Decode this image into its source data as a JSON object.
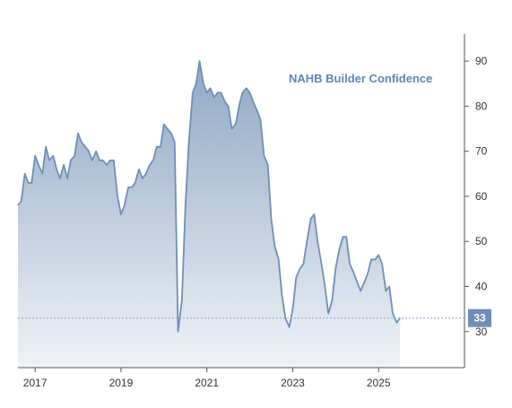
{
  "chart_data": {
    "type": "area",
    "title": "NAHB Builder Confidence",
    "xlabel": "",
    "ylabel": "",
    "x_range": [
      2016.6,
      2027.0
    ],
    "ylim": [
      22,
      96
    ],
    "y_ticks": [
      30,
      40,
      50,
      60,
      70,
      80,
      90
    ],
    "x_ticks": [
      {
        "value": 2017,
        "label": "2017"
      },
      {
        "value": 2019,
        "label": "2019"
      },
      {
        "value": 2021,
        "label": "2021"
      },
      {
        "value": 2023,
        "label": "2023"
      },
      {
        "value": 2025,
        "label": "2025"
      }
    ],
    "grid": false,
    "y_axis_side": "right",
    "last_value": 33,
    "last_value_label": "33",
    "series": [
      {
        "x": [
          2016.6,
          2016.68,
          2016.76,
          2016.84,
          2016.92,
          2017.0,
          2017.08,
          2017.17,
          2017.25,
          2017.33,
          2017.42,
          2017.5,
          2017.58,
          2017.67,
          2017.75,
          2017.83,
          2017.92,
          2018.0,
          2018.08,
          2018.17,
          2018.25,
          2018.33,
          2018.42,
          2018.5,
          2018.58,
          2018.67,
          2018.75,
          2018.83,
          2018.92,
          2019.0,
          2019.08,
          2019.17,
          2019.25,
          2019.33,
          2019.42,
          2019.5,
          2019.58,
          2019.67,
          2019.75,
          2019.83,
          2019.92,
          2020.0,
          2020.08,
          2020.17,
          2020.25,
          2020.33,
          2020.42,
          2020.5,
          2020.58,
          2020.67,
          2020.75,
          2020.83,
          2020.92,
          2021.0,
          2021.08,
          2021.17,
          2021.25,
          2021.33,
          2021.42,
          2021.5,
          2021.58,
          2021.67,
          2021.75,
          2021.83,
          2021.92,
          2022.0,
          2022.08,
          2022.17,
          2022.25,
          2022.33,
          2022.42,
          2022.5,
          2022.58,
          2022.67,
          2022.75,
          2022.83,
          2022.92,
          2023.0,
          2023.08,
          2023.17,
          2023.25,
          2023.33,
          2023.42,
          2023.5,
          2023.58,
          2023.67,
          2023.75,
          2023.83,
          2023.92,
          2024.0,
          2024.08,
          2024.17,
          2024.25,
          2024.33,
          2024.42,
          2024.5,
          2024.58,
          2024.67,
          2024.75,
          2024.83,
          2024.92,
          2025.0,
          2025.08,
          2025.17,
          2025.25,
          2025.33,
          2025.42,
          2025.5
        ],
        "values": [
          58,
          59,
          65,
          63,
          63,
          69,
          67,
          65,
          71,
          68,
          69,
          66,
          64,
          67,
          64,
          68,
          69,
          74,
          72,
          71,
          70,
          68,
          70,
          68,
          68,
          67,
          68,
          68,
          60,
          56,
          58,
          62,
          62,
          63,
          66,
          64,
          65,
          67,
          68,
          71,
          71,
          76,
          75,
          74,
          72,
          30,
          37,
          58,
          72,
          83,
          85,
          90,
          85,
          83,
          84,
          82,
          83,
          83,
          81,
          80,
          75,
          76,
          80,
          83,
          84,
          83,
          81,
          79,
          77,
          69,
          67,
          55,
          49,
          46,
          38,
          33,
          31,
          35,
          42,
          44,
          45,
          50,
          55,
          56,
          50,
          45,
          40,
          34,
          37,
          44,
          48,
          51,
          51,
          45,
          43,
          41,
          39,
          41,
          43,
          46,
          46,
          47,
          45,
          39,
          40,
          34,
          32,
          33
        ]
      }
    ]
  }
}
